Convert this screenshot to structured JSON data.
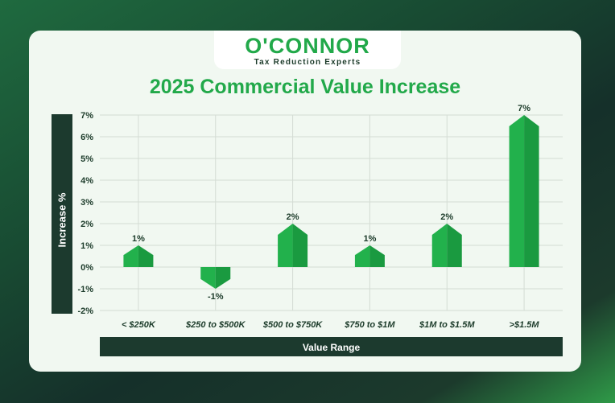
{
  "header": {
    "brand": "O'CONNOR",
    "tagline": "Tax Reduction Experts"
  },
  "chart_data": {
    "type": "bar",
    "title": "2025 Commercial Value Increase",
    "xlabel": "Value Range",
    "ylabel": "Increase %",
    "categories": [
      "< $250K",
      "$250 to $500K",
      "$500 to $750K",
      "$750 to $1M",
      "$1M to $1.5M",
      ">$1.5M"
    ],
    "values": [
      1,
      -1,
      2,
      1,
      2,
      7
    ],
    "data_labels": [
      "1%",
      "-1%",
      "2%",
      "1%",
      "2%",
      "7%"
    ],
    "ylim": [
      -2,
      7
    ],
    "yticks": [
      7,
      6,
      5,
      4,
      3,
      2,
      1,
      0,
      -1,
      -2
    ],
    "ytick_labels": [
      "7%",
      "6%",
      "5%",
      "4%",
      "3%",
      "2%",
      "1%",
      "0%",
      "-1%",
      "-2%"
    ],
    "grid": true,
    "legend": "none",
    "colors": {
      "bar": "#22b14c",
      "bar_shade": "#1a9a40",
      "grid": "#d4dcd4",
      "text": "#1c3b2a"
    }
  }
}
